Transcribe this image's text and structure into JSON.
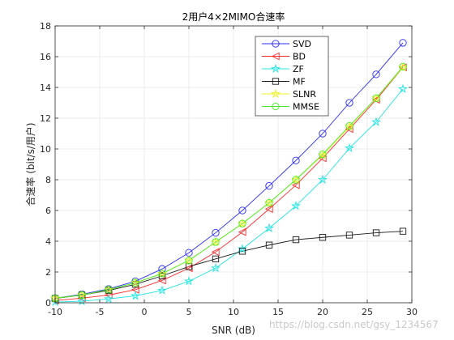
{
  "chart_data": {
    "type": "line",
    "title": "2用户4×2MIMO合速率",
    "xlabel": "SNR (dB)",
    "ylabel": "合速率 (bit/s/用户)",
    "xlim": [
      -10,
      30
    ],
    "ylim": [
      0,
      18
    ],
    "xticks": [
      -10,
      -5,
      0,
      5,
      10,
      15,
      20,
      25,
      30
    ],
    "yticks": [
      0,
      2,
      4,
      6,
      8,
      10,
      12,
      14,
      16,
      18
    ],
    "grid": true,
    "legend_position": "top-right",
    "x": [
      -10,
      -7,
      -4,
      -1,
      2,
      5,
      8,
      11,
      14,
      17,
      20,
      23,
      26,
      29
    ],
    "series": [
      {
        "name": "SVD",
        "color": "#2b2bff",
        "marker": "circle",
        "values": [
          0.3,
          0.55,
          0.9,
          1.4,
          2.2,
          3.25,
          4.55,
          6.0,
          7.6,
          9.25,
          11.0,
          13.0,
          14.85,
          16.9
        ]
      },
      {
        "name": "BD",
        "color": "#ff2a2a",
        "marker": "triangle-left",
        "values": [
          0.15,
          0.3,
          0.5,
          0.85,
          1.45,
          2.25,
          3.3,
          4.6,
          6.1,
          7.65,
          9.4,
          11.3,
          13.2,
          15.3
        ]
      },
      {
        "name": "ZF",
        "color": "#22e5e5",
        "marker": "star",
        "values": [
          0.05,
          0.1,
          0.25,
          0.45,
          0.8,
          1.4,
          2.25,
          3.5,
          4.85,
          6.3,
          8.0,
          10.05,
          11.75,
          13.9
        ]
      },
      {
        "name": "MF",
        "color": "#1a1a1a",
        "marker": "square",
        "values": [
          0.28,
          0.5,
          0.8,
          1.2,
          1.75,
          2.35,
          2.85,
          3.35,
          3.75,
          4.1,
          4.25,
          4.4,
          4.55,
          4.65
        ]
      },
      {
        "name": "SLNR",
        "color": "#f0f020",
        "marker": "star",
        "values": [
          0.3,
          0.5,
          0.85,
          1.3,
          1.9,
          2.75,
          3.95,
          5.15,
          6.5,
          8.0,
          9.6,
          11.45,
          13.3,
          15.3
        ]
      },
      {
        "name": "MMSE",
        "color": "#44ee22",
        "marker": "circle",
        "values": [
          0.3,
          0.5,
          0.85,
          1.3,
          1.9,
          2.75,
          3.95,
          5.15,
          6.5,
          8.0,
          9.65,
          11.5,
          13.3,
          15.35
        ]
      }
    ]
  },
  "watermark": "https://blog.csdn.net/gsy_1234567"
}
